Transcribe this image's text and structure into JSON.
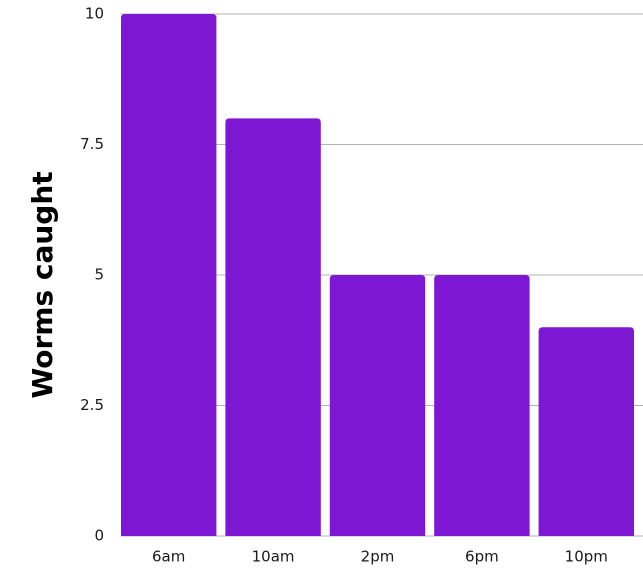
{
  "chart_data": {
    "type": "bar",
    "categories": [
      "6am",
      "10am",
      "2pm",
      "6pm",
      "10pm"
    ],
    "values": [
      10,
      8,
      5,
      5,
      4
    ],
    "title": "",
    "xlabel": "",
    "ylabel": "Worms caught",
    "ylim": [
      0,
      10
    ],
    "yticks": [
      0,
      2.5,
      5,
      7.5,
      10
    ],
    "ytick_labels": [
      "0",
      "2.5",
      "5",
      "7.5",
      "10"
    ],
    "grid": true,
    "bar_color": "#7e17d4",
    "grid_color": "#b3b3b3"
  }
}
